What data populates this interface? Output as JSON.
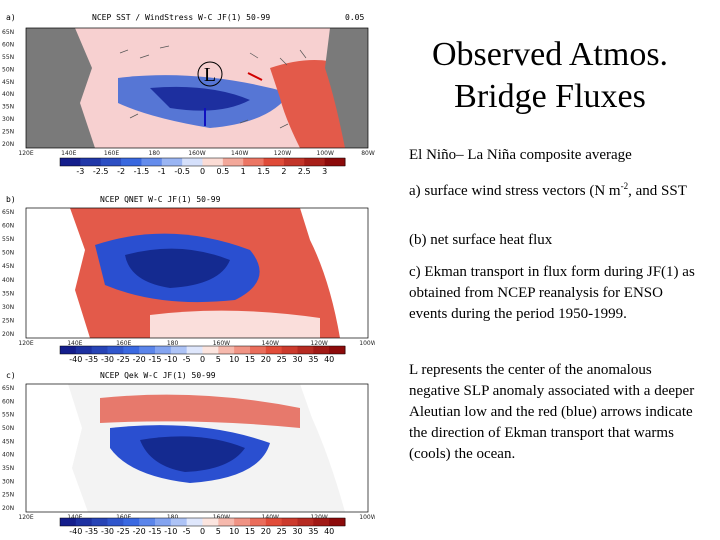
{
  "slide": {
    "title_line1": "Observed Atmos.",
    "title_line2": "Bridge Fluxes",
    "p1": "El Niño– La Niña composite average",
    "p2_a": "a) surface wind stress vectors (N m",
    "p2_sup": "-2",
    "p2_b": ", and SST",
    "p3": "(b) net surface heat flux",
    "p4": "c) Ekman transport in flux form during JF(1) as obtained from NCEP reanalysis for ENSO events during the period 1950-1999.",
    "p5": "L represents the center of the anomalous negative SLP anomaly associated with a deeper Aleutian low and the red  (blue) arrows indicate the direction of Ekman transport that warms (cools) the ocean."
  },
  "panels": [
    {
      "letter": "a)",
      "title": "NCEP SST / WindStress W-C JF(1) 50-99",
      "ref_value": "0.05",
      "marker": "L",
      "lat_labels": [
        "65N",
        "60N",
        "55N",
        "50N",
        "45N",
        "40N",
        "35N",
        "30N",
        "25N",
        "20N"
      ],
      "lon_labels": [
        "120E",
        "140E",
        "160E",
        "180",
        "160W",
        "140W",
        "120W",
        "100W",
        "80W"
      ],
      "colorbar": [
        "-3",
        "-2.5",
        "-2",
        "-1.5",
        "-1",
        "-0.5",
        "0",
        "0.5",
        "1",
        "1.5",
        "2",
        "2.5",
        "3"
      ]
    },
    {
      "letter": "b)",
      "title": "NCEP QNET W-C JF(1) 50-99",
      "lat_labels": [
        "65N",
        "60N",
        "55N",
        "50N",
        "45N",
        "40N",
        "35N",
        "30N",
        "25N",
        "20N"
      ],
      "lon_labels": [
        "120E",
        "140E",
        "160E",
        "180",
        "160W",
        "140W",
        "120W",
        "100W"
      ],
      "colorbar": [
        "-40",
        "-35",
        "-30",
        "-25",
        "-20",
        "-15",
        "-10",
        "-5",
        "0",
        "5",
        "10",
        "15",
        "20",
        "25",
        "30",
        "35",
        "40"
      ]
    },
    {
      "letter": "c)",
      "title": "NCEP Qek W-C JF(1) 50-99",
      "lat_labels": [
        "65N",
        "60N",
        "55N",
        "50N",
        "45N",
        "40N",
        "35N",
        "30N",
        "25N",
        "20N"
      ],
      "lon_labels": [
        "120E",
        "140E",
        "160E",
        "180",
        "160W",
        "140W",
        "120W",
        "100W"
      ],
      "colorbar": [
        "-40",
        "-35",
        "-30",
        "-25",
        "-20",
        "-15",
        "-10",
        "-5",
        "0",
        "5",
        "10",
        "15",
        "20",
        "25",
        "30",
        "35",
        "40"
      ]
    }
  ],
  "colors": {
    "warm": "#e02020",
    "cool": "#1d3fbf",
    "land": "#7a7a7a",
    "arrow_warm": "#d00000",
    "arrow_cool": "#1010c0"
  }
}
